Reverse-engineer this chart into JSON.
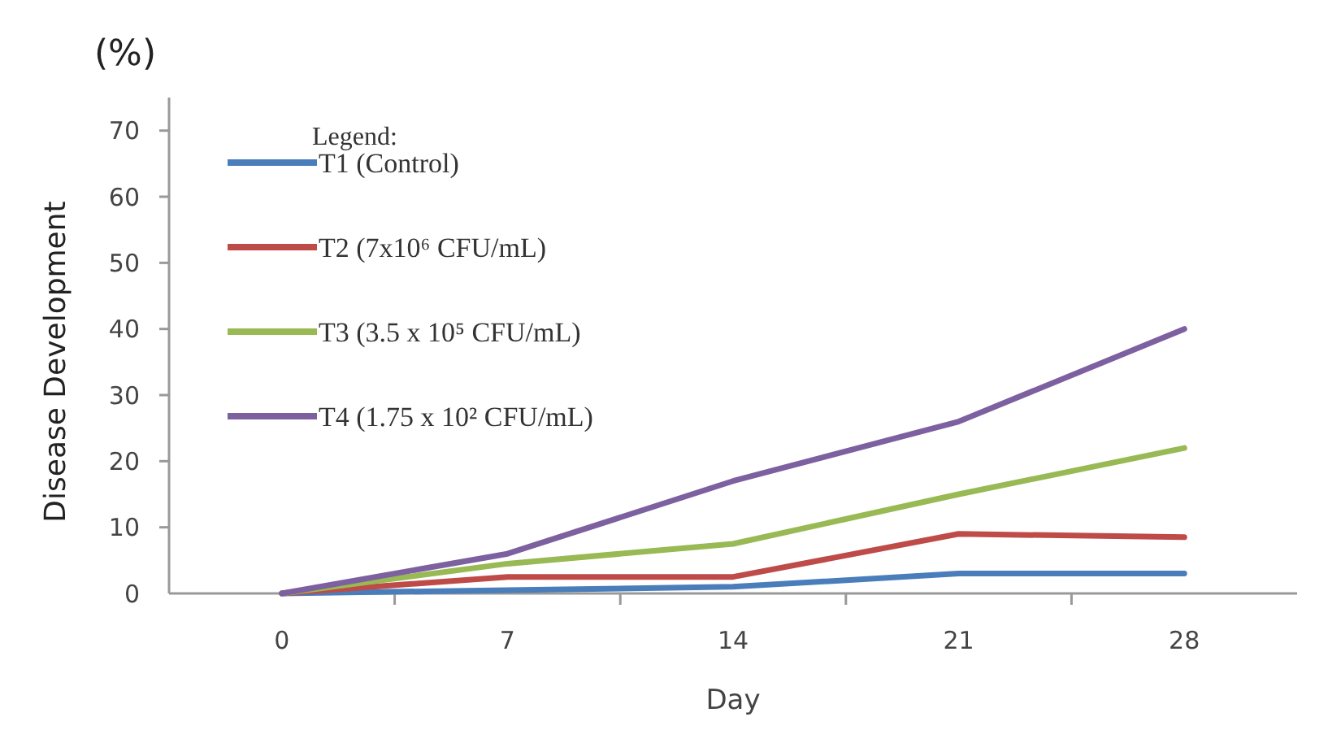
{
  "chart_data": {
    "type": "line",
    "xlabel": "Day",
    "ylabel": "Disease Development",
    "annotations": [
      "(%)"
    ],
    "legend_title": "Legend:",
    "legend": "top left",
    "x": [
      0,
      7,
      14,
      21,
      28
    ],
    "xlim": [
      -3.5,
      31.5
    ],
    "xticks": [
      0,
      7,
      14,
      21,
      28,
      {
        "value": 3.5,
        "label": null
      },
      {
        "value": 10.5,
        "label": null
      },
      {
        "value": 17.5,
        "label": null
      },
      {
        "value": 24.5,
        "label": null
      }
    ],
    "ylim": [
      0,
      75
    ],
    "yticks": [
      0,
      10,
      20,
      30,
      40,
      50,
      60,
      70
    ],
    "grid": false,
    "marker": "none",
    "line_style": "solid",
    "series": [
      {
        "name": "T1 (Control)",
        "color": "#4a7ebb",
        "values": [
          0,
          0.5,
          1,
          3,
          3
        ]
      },
      {
        "name": "T2 (7x10⁶ CFU/mL)",
        "color": "#be4b48",
        "values": [
          0,
          2.5,
          2.5,
          9,
          8.5
        ]
      },
      {
        "name": "T3 (3.5 x 10⁵ CFU/mL)",
        "color": "#98b954",
        "values": [
          0,
          4.5,
          7.5,
          15,
          22
        ]
      },
      {
        "name": "T4 (1.75 x 10² CFU/mL)",
        "color": "#7d60a0",
        "values": [
          0,
          6,
          17,
          26,
          40
        ]
      }
    ]
  }
}
